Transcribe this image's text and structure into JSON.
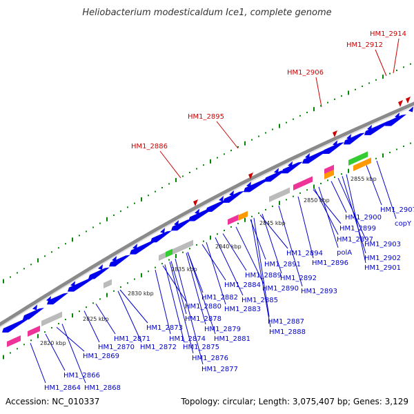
{
  "title": "Heliobacterium modesticaldum Ice1, complete genome",
  "footer": {
    "accession": "Accession: NC_010337",
    "summary": "Topology: circular; Length: 3,075,407 bp; Genes: 3,129"
  },
  "colors": {
    "gene_arrow": "#0000ee",
    "backbone": "#8a8a8a",
    "tick": "#008800",
    "red_label": "#cc0000",
    "blue_label": "#0000cc",
    "pink": "#ee3399",
    "orange": "#ff9900",
    "green": "#33cc33",
    "gray": "#bbbbbb"
  },
  "kbp_labels": [
    "2820 kbp",
    "2825 kbp",
    "2830 kbp",
    "2835 kbp",
    "2840 kbp",
    "2845 kbp",
    "2850 kbp",
    "2855 kbp"
  ],
  "highlighted_genes": [
    "HM1_2886",
    "HM1_2895",
    "HM1_2906",
    "HM1_2912",
    "HM1_2914"
  ],
  "gene_labels": [
    "HM1_2864",
    "HM1_2866",
    "HM1_2868",
    "HM1_2869",
    "HM1_2870",
    "HM1_2871",
    "HM1_2872",
    "HM1_2873",
    "HM1_2874",
    "HM1_2875",
    "HM1_2876",
    "HM1_2877",
    "HM1_2878",
    "HM1_2879",
    "HM1_2880",
    "HM1_2881",
    "HM1_2882",
    "HM1_2883",
    "HM1_2884",
    "HM1_2885",
    "HM1_2887",
    "HM1_2888",
    "HM1_2889",
    "HM1_2890",
    "HM1_2891",
    "HM1_2892",
    "HM1_2893",
    "HM1_2894",
    "HM1_2896",
    "polA",
    "HM1_2897",
    "HM1_2899",
    "HM1_2900",
    "HM1_2901",
    "HM1_2902",
    "HM1_2903",
    "HM1_2907",
    "copY"
  ]
}
